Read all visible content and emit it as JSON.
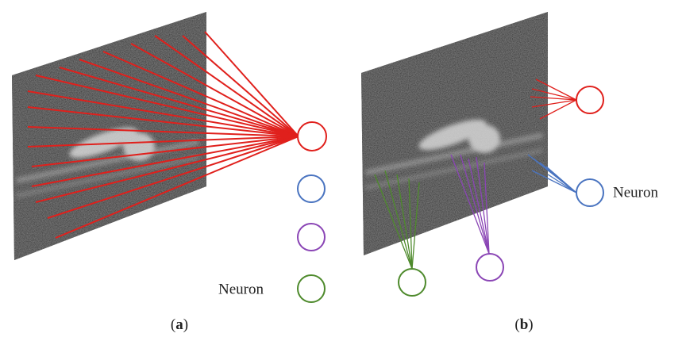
{
  "panels": [
    {
      "neuron_label": "Neuron",
      "caption": {
        "open": "(",
        "letter": "a",
        "close": ")"
      }
    },
    {
      "neuron_label": "Neuron",
      "caption": {
        "open": "(",
        "letter": "b",
        "close": ")"
      }
    }
  ]
}
